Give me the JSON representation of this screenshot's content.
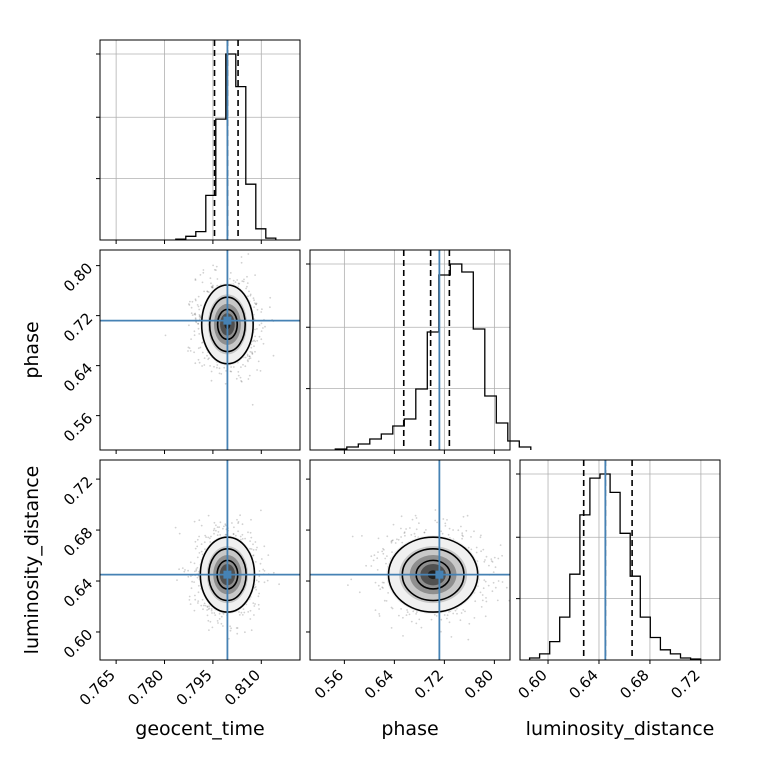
{
  "chart_data": {
    "type": "corner",
    "parameters": [
      {
        "name": "geocent_time",
        "label": "geocent_time",
        "range": [
          0.76,
          0.822
        ],
        "ticks": [
          0.765,
          0.78,
          0.795,
          0.81
        ],
        "tick_labels": [
          "0.765",
          "0.780",
          "0.795",
          "0.810"
        ],
        "truth": 0.7995,
        "quantiles": [
          0.7955,
          0.7995,
          0.8028
        ]
      },
      {
        "name": "phase",
        "label": "phase",
        "range": [
          0.505,
          0.825
        ],
        "ticks": [
          0.56,
          0.64,
          0.72,
          0.8
        ],
        "tick_labels": [
          "0.56",
          "0.64",
          "0.72",
          "0.80"
        ],
        "truth": 0.712,
        "quantiles": [
          0.655,
          0.698,
          0.728
        ]
      },
      {
        "name": "luminosity_distance",
        "label": "luminosity_distance",
        "range": [
          0.578,
          0.735
        ],
        "ticks": [
          0.6,
          0.64,
          0.68,
          0.72
        ],
        "tick_labels": [
          "0.60",
          "0.64",
          "0.68",
          "0.72"
        ],
        "truth": 0.645,
        "quantiles": [
          0.628,
          0.645,
          0.666
        ]
      }
    ],
    "histograms": [
      {
        "param": "geocent_time",
        "x_start": 0.7835,
        "bin_width": 0.0031,
        "counts": [
          1,
          4,
          9,
          48,
          130,
          200,
          165,
          60,
          12,
          2
        ]
      },
      {
        "param": "phase",
        "x_start": 0.5454,
        "bin_width": 0.0184,
        "counts": [
          1,
          3,
          6,
          11,
          16,
          24,
          31,
          61,
          118,
          175,
          186,
          178,
          121,
          54,
          27,
          9,
          3
        ]
      },
      {
        "param": "luminosity_distance",
        "x_start": 0.5855,
        "bin_width": 0.0079,
        "counts": [
          2,
          6,
          18,
          42,
          84,
          142,
          178,
          182,
          164,
          124,
          82,
          42,
          22,
          10,
          6,
          2,
          1
        ]
      }
    ],
    "densities": [
      {
        "x": "geocent_time",
        "y": "phase",
        "center": [
          0.7995,
          0.706
        ],
        "sigma": [
          0.0038,
          0.03
        ]
      },
      {
        "x": "geocent_time",
        "y": "luminosity_distance",
        "center": [
          0.7995,
          0.645
        ],
        "sigma": [
          0.004,
          0.014
        ]
      },
      {
        "x": "phase",
        "y": "luminosity_distance",
        "center": [
          0.702,
          0.645
        ],
        "sigma": [
          0.034,
          0.014
        ]
      }
    ],
    "truth_color": "#4682b4",
    "contour_color": "#000000",
    "grid": true
  }
}
